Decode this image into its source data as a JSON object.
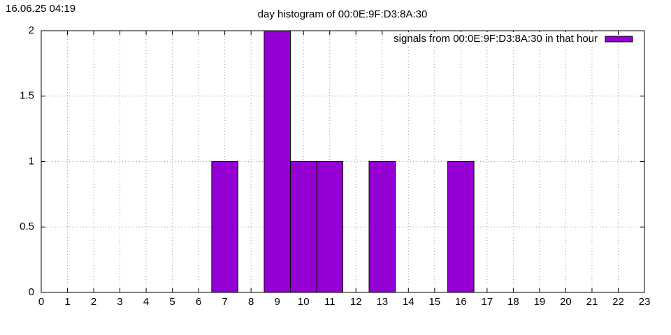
{
  "chart_data": {
    "type": "bar",
    "timestamp": "16.06.25 04:19",
    "title": "day histogram of 00:0E:9F:D3:8A:30",
    "x": [
      7,
      9,
      10,
      11,
      13,
      16
    ],
    "series": [
      {
        "name": "signals from 00:0E:9F:D3:8A:30 in that hour",
        "color": "#9400d3",
        "values": [
          1,
          2,
          1,
          1,
          1,
          1
        ]
      }
    ],
    "xlim": [
      0,
      23
    ],
    "xticks": [
      0,
      1,
      2,
      3,
      4,
      5,
      6,
      7,
      8,
      9,
      10,
      11,
      12,
      13,
      14,
      15,
      16,
      17,
      18,
      19,
      20,
      21,
      22,
      23
    ],
    "ylim": [
      0,
      2
    ],
    "yticks": [
      0,
      0.5,
      1,
      1.5,
      2
    ],
    "grid": true,
    "legend": "top-right"
  }
}
